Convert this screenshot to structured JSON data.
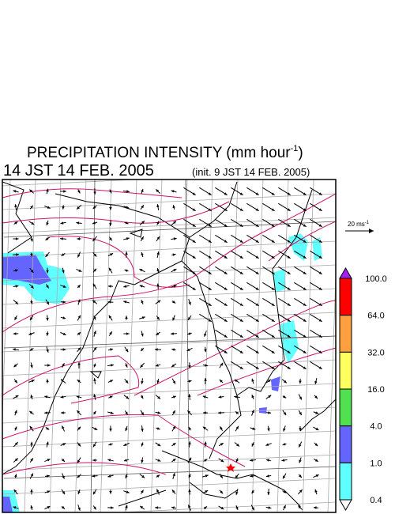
{
  "header": {
    "title": {
      "text": "PRECIPITATION INTENSITY (mm hour",
      "superscript": "-1",
      "close": ")"
    },
    "valid_time": "14 JST 14 FEB. 2005",
    "init_time": "(init. 9 JST 14 FEB. 2005)"
  },
  "wind_scale": {
    "text": "20 ms",
    "superscript": "-1"
  },
  "colorbar": {
    "levels": [
      "100.0",
      "64.0",
      "32.0",
      "16.0",
      "4.0",
      "1.0",
      "0.4"
    ],
    "colors": [
      "#a020f0",
      "#ff0000",
      "#ffa040",
      "#ffff60",
      "#50e050",
      "#6464ff",
      "#60ffff",
      "#ffffff"
    ]
  }
}
